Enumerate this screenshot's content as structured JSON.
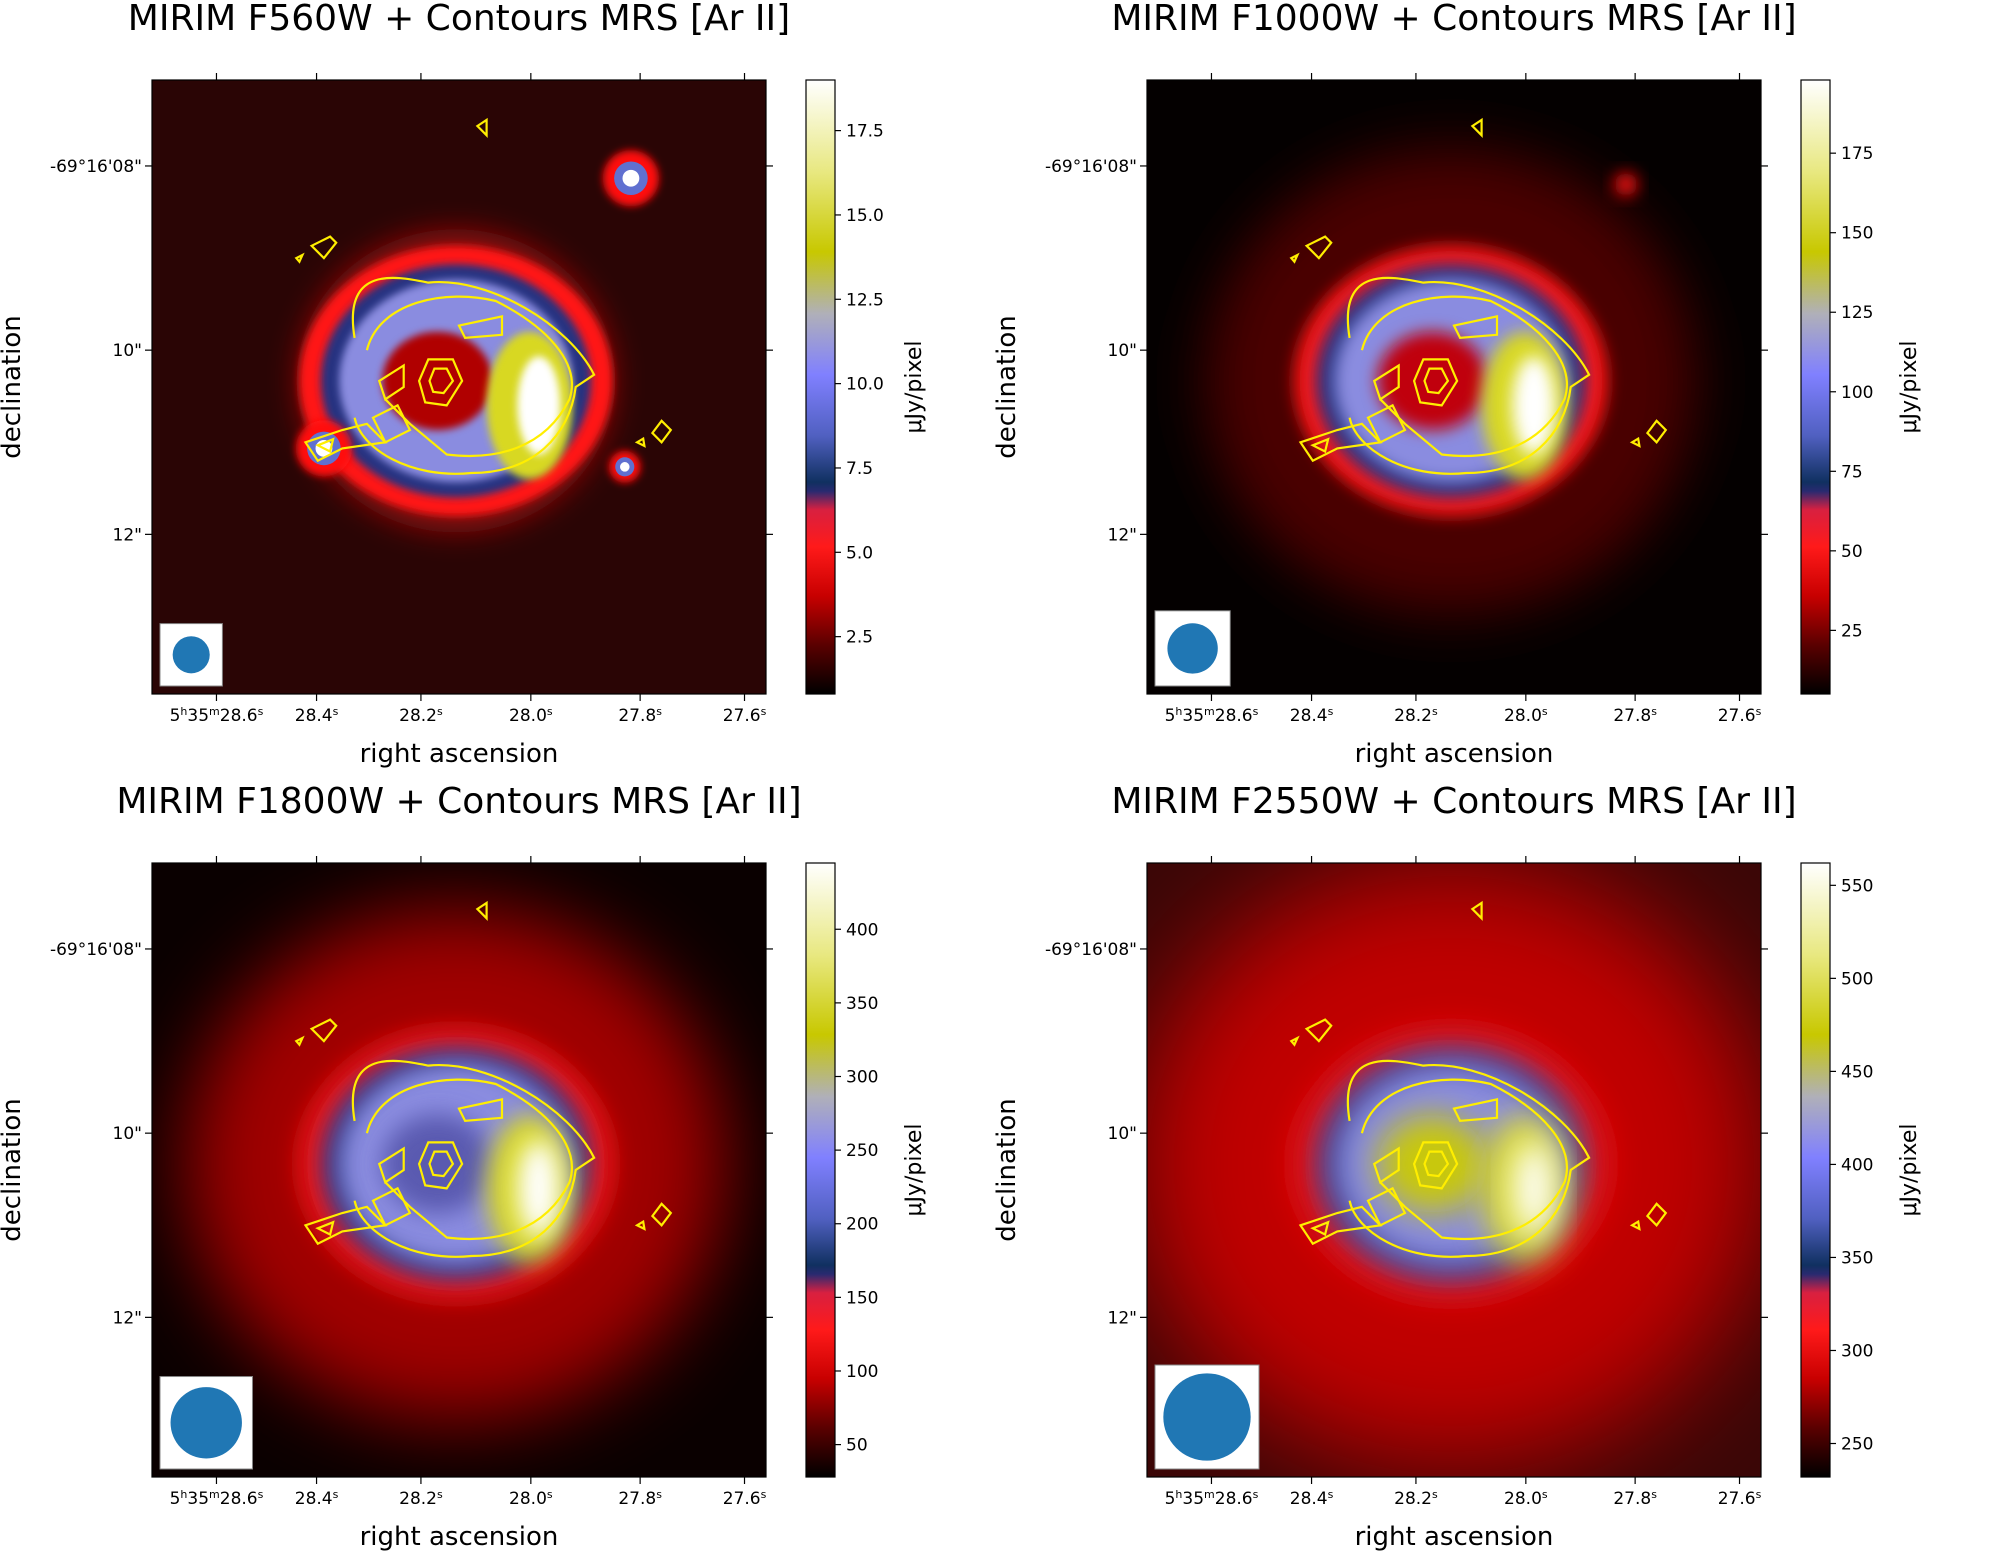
{
  "chart_data": [
    {
      "type": "heatmap",
      "title": "MIRIM F560W + Contours MRS [Ar II]",
      "xlabel": "right ascension",
      "ylabel": "declination",
      "x_ticks": [
        "5h35m28.6s",
        "28.4s",
        "28.2s",
        "28.0s",
        "27.8s",
        "27.6s"
      ],
      "y_ticks": [
        "-69°16'08\"",
        "10\"",
        "12\""
      ],
      "colorbar": {
        "label": "μJy/pixel",
        "range": [
          0.8,
          19.0
        ],
        "ticks": [
          2.5,
          5.0,
          7.5,
          10.0,
          12.5,
          15.0,
          17.5
        ],
        "tick_labels": [
          "2.5",
          "5.0",
          "7.5",
          "10.0",
          "12.5",
          "15.0",
          "17.5"
        ]
      },
      "beam_relative_size": 0.35,
      "field_sources": [
        {
          "x": 0.78,
          "y": 0.16,
          "brightness": 1.0
        },
        {
          "x": 0.28,
          "y": 0.6,
          "brightness": 1.0
        },
        {
          "x": 0.77,
          "y": 0.63,
          "brightness": 0.45
        }
      ]
    },
    {
      "type": "heatmap",
      "title": "MIRIM F1000W + Contours MRS [Ar II]",
      "xlabel": "right ascension",
      "ylabel": "declination",
      "x_ticks": [
        "5h35m28.6s",
        "28.4s",
        "28.2s",
        "28.0s",
        "27.8s",
        "27.6s"
      ],
      "y_ticks": [
        "-69°16'08\"",
        "10\"",
        "12\""
      ],
      "colorbar": {
        "label": "μJy/pixel",
        "range": [
          5,
          198
        ],
        "ticks": [
          25,
          50,
          75,
          100,
          125,
          150,
          175
        ],
        "tick_labels": [
          "25",
          "50",
          "75",
          "100",
          "125",
          "150",
          "175"
        ]
      },
      "beam_relative_size": 0.55,
      "field_sources": [
        {
          "x": 0.78,
          "y": 0.17,
          "brightness": 0.25
        }
      ]
    },
    {
      "type": "heatmap",
      "title": "MIRIM F1800W + Contours MRS [Ar II]",
      "xlabel": "right ascension",
      "ylabel": "declination",
      "x_ticks": [
        "5h35m28.6s",
        "28.4s",
        "28.2s",
        "28.0s",
        "27.8s",
        "27.6s"
      ],
      "y_ticks": [
        "-69°16'08\"",
        "10\"",
        "12\""
      ],
      "colorbar": {
        "label": "μJy/pixel",
        "range": [
          28,
          445
        ],
        "ticks": [
          50,
          100,
          150,
          200,
          250,
          300,
          350,
          400
        ],
        "tick_labels": [
          "50",
          "100",
          "150",
          "200",
          "250",
          "300",
          "350",
          "400"
        ]
      },
      "beam_relative_size": 0.82,
      "field_sources": []
    },
    {
      "type": "heatmap",
      "title": "MIRIM F2550W + Contours MRS [Ar II]",
      "xlabel": "right ascension",
      "ylabel": "declination",
      "x_ticks": [
        "5h35m28.6s",
        "28.4s",
        "28.2s",
        "28.0s",
        "27.8s",
        "27.6s"
      ],
      "y_ticks": [
        "-69°16'08\"",
        "10\"",
        "12\""
      ],
      "colorbar": {
        "label": "μJy/pixel",
        "range": [
          232,
          562
        ],
        "ticks": [
          250,
          300,
          350,
          400,
          450,
          500,
          550
        ],
        "tick_labels": [
          "250",
          "300",
          "350",
          "400",
          "450",
          "500",
          "550"
        ]
      },
      "beam_relative_size": 1.0,
      "field_sources": []
    }
  ],
  "colors": {
    "colormap": [
      "#000000",
      "#5a0000",
      "#c80000",
      "#ff1a1a",
      "#d82040",
      "#2a2a70",
      "#103060",
      "#5060c0",
      "#8080ff",
      "#b0b0b8",
      "#c8c800",
      "#e8e880",
      "#ffffff"
    ],
    "contour": "#ffee00",
    "beam": "#2077b4"
  }
}
